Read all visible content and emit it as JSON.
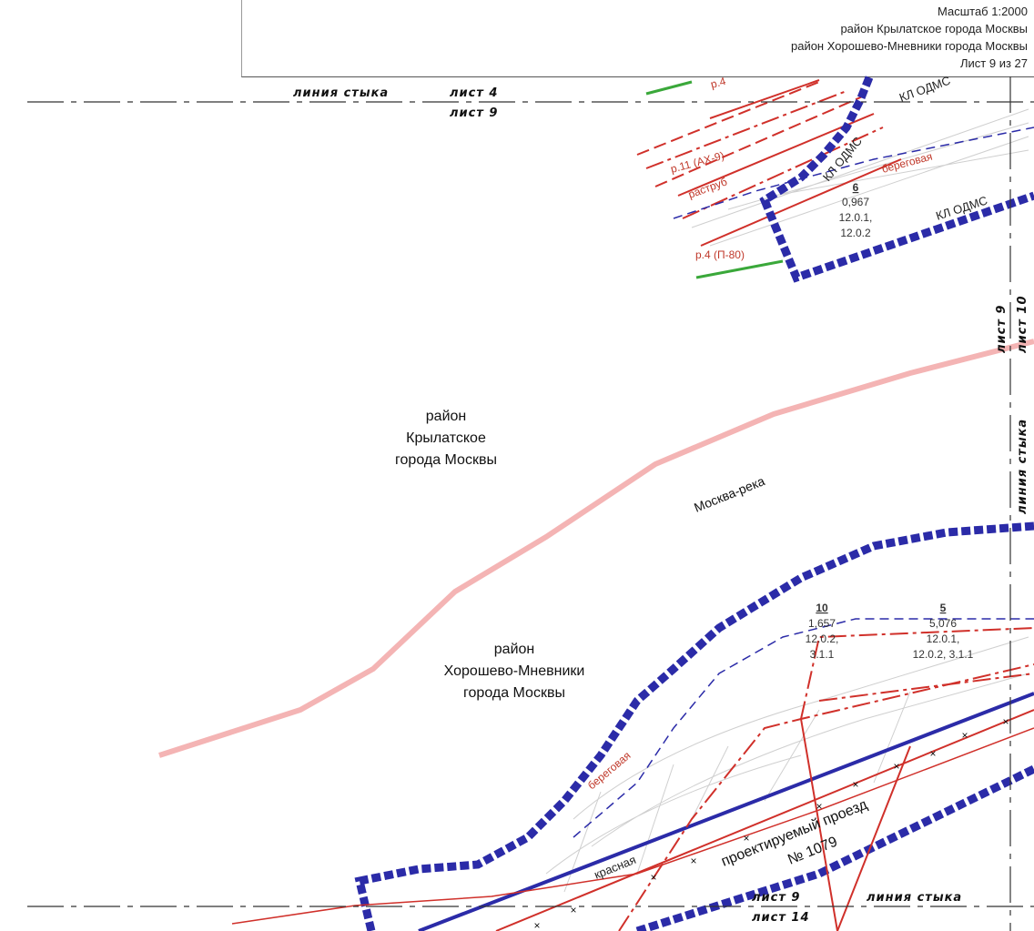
{
  "header": {
    "scale": "Масштаб 1:2000",
    "district1": "район Крылатское города Москвы",
    "district2": "район Хорошево-Мневники города Москвы",
    "sheet": "Лист 9 из 27"
  },
  "joins": {
    "top_line": "линия стыка",
    "top_sheet_a": "лист 4",
    "top_sheet_b": "лист 9",
    "right_line": "линия стыка",
    "right_sheet_a": "лист 9",
    "right_sheet_b": "лист 10",
    "bottom_sheet_a": "лист 9",
    "bottom_sheet_b": "лист 14",
    "bottom_line": "линия стыка"
  },
  "districts": {
    "krylatskoe": [
      "район",
      "Крылатское",
      "города Москвы"
    ],
    "khoroshevo": [
      "район",
      "Хорошево-Мневники",
      "города Москвы"
    ]
  },
  "river": "Москва-река",
  "zones": [
    {
      "number": "6",
      "lines": [
        "0,967",
        "12.0.1,",
        "12.0.2"
      ]
    },
    {
      "number": "10",
      "lines": [
        "1,657",
        "12.0.2,",
        "3.1.1"
      ]
    },
    {
      "number": "5",
      "lines": [
        "5,076",
        "12.0.1,",
        "12.0.2, 3.1.1"
      ]
    }
  ],
  "labels": {
    "p4_top": "р.4",
    "r11": "р.11 (АХ-9)",
    "rastrub": "раструб",
    "p4": "р.4 (П-80)",
    "beregovaya_top": "береговая",
    "beregovaya_bottom": "береговая",
    "kl_odms_1": "КЛ ОДМС",
    "kl_odms_2": "КЛ ОДМС",
    "kl_odms_3": "КЛ ОДМС",
    "krasnaya": "красная",
    "proezd": "проектируемый проезд",
    "proezd_num": "№ 1079"
  },
  "colors": {
    "boundary": "#2b2ba8",
    "red_line": "#d0302a",
    "river": "#f4b4b4",
    "green": "#3aa83a"
  }
}
